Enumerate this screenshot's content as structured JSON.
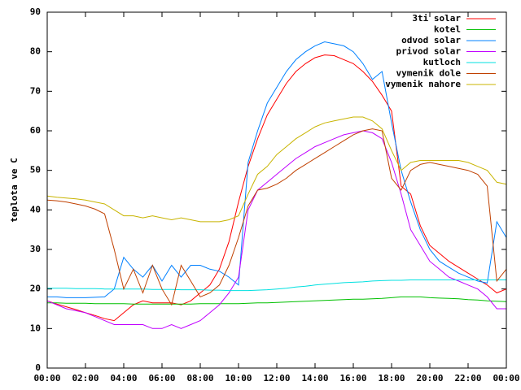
{
  "chart_data": {
    "type": "line",
    "y_label": "teplota ve C",
    "x": [
      0,
      0.5,
      1,
      1.5,
      2,
      2.5,
      3,
      3.5,
      4,
      4.5,
      5,
      5.5,
      6,
      6.5,
      7,
      7.5,
      8,
      8.5,
      9,
      9.5,
      10,
      10.5,
      11,
      11.5,
      12,
      12.5,
      13,
      13.5,
      14,
      14.5,
      15,
      15.5,
      16,
      16.5,
      17,
      17.5,
      18,
      18.5,
      19,
      19.5,
      20,
      20.5,
      21,
      21.5,
      22,
      22.5,
      23,
      23.5,
      24
    ],
    "series": [
      {
        "name": "3ti solar",
        "color": "#ff0000",
        "values": [
          17,
          16.2,
          15.5,
          14.8,
          14,
          13.3,
          12.5,
          12,
          14,
          16,
          17,
          16.5,
          16.5,
          16.5,
          16,
          17,
          19,
          21,
          25,
          32,
          42,
          51,
          58,
          64,
          68,
          72,
          75,
          77,
          78.5,
          79.2,
          79,
          78,
          77,
          75,
          72.5,
          69,
          65,
          46,
          44,
          36,
          31,
          29,
          27,
          25.5,
          24,
          22.5,
          21,
          19,
          20
        ]
      },
      {
        "name": "kotel",
        "color": "#00c000",
        "values": [
          16.5,
          16.5,
          16.4,
          16.4,
          16.4,
          16.3,
          16.3,
          16.3,
          16.3,
          16.2,
          16.2,
          16.2,
          16.2,
          16.2,
          16.2,
          16.2,
          16.3,
          16.3,
          16.3,
          16.3,
          16.3,
          16.4,
          16.5,
          16.5,
          16.6,
          16.7,
          16.8,
          16.9,
          17,
          17.1,
          17.2,
          17.3,
          17.4,
          17.4,
          17.5,
          17.6,
          17.8,
          18,
          18,
          18,
          17.8,
          17.7,
          17.6,
          17.5,
          17.3,
          17.2,
          17,
          16.9,
          16.8
        ]
      },
      {
        "name": "odvod solar",
        "color": "#0080ff",
        "values": [
          18,
          18,
          17.8,
          17.8,
          17.8,
          17.9,
          18,
          20,
          28,
          25,
          23,
          26,
          22,
          26,
          23,
          26,
          26,
          25,
          24.5,
          23,
          21,
          52,
          60,
          67,
          71,
          75,
          78,
          80,
          81.5,
          82.5,
          82,
          81.5,
          80,
          77,
          73,
          75,
          62,
          50,
          42,
          35,
          30,
          27,
          25.5,
          24,
          23,
          22,
          21.5,
          37,
          33
        ]
      },
      {
        "name": "privod solar",
        "color": "#c000ff",
        "values": [
          17,
          16,
          15,
          14.5,
          14,
          13,
          12,
          11,
          11,
          11,
          11,
          10,
          10,
          11,
          10,
          11,
          12,
          14,
          16,
          19,
          23,
          40,
          45,
          47,
          49,
          51,
          53,
          54.5,
          56,
          57,
          58,
          59,
          59.5,
          60,
          59.5,
          58,
          52,
          44,
          35,
          31,
          27,
          25,
          23,
          22,
          21,
          20,
          18,
          15,
          15
        ]
      },
      {
        "name": "kutloch",
        "color": "#00e0e0",
        "values": [
          20.2,
          20.2,
          20.2,
          20.1,
          20.1,
          20.1,
          20,
          20,
          20,
          20,
          20,
          19.9,
          19.9,
          19.9,
          19.8,
          19.8,
          19.8,
          19.7,
          19.7,
          19.6,
          19.6,
          19.6,
          19.7,
          19.8,
          20,
          20.2,
          20.5,
          20.7,
          21,
          21.2,
          21.4,
          21.6,
          21.7,
          21.8,
          22,
          22.1,
          22.2,
          22.2,
          22.3,
          22.3,
          22.3,
          22.3,
          22.3,
          22.3,
          22.3,
          22.3,
          22.3,
          22.3,
          22.3
        ]
      },
      {
        "name": "vymenik dole",
        "color": "#c04000",
        "values": [
          42.5,
          42.3,
          42,
          41.5,
          41,
          40.2,
          39,
          30,
          20,
          25,
          19,
          26,
          20,
          16,
          26,
          22,
          18,
          19,
          21,
          26,
          33,
          41,
          45,
          45.5,
          46.5,
          48,
          50,
          51.5,
          53,
          54.5,
          56,
          57.5,
          59,
          60,
          60.5,
          60,
          48,
          45,
          50,
          51.5,
          52,
          51.5,
          51,
          50.5,
          50,
          49,
          46,
          22,
          25
        ]
      },
      {
        "name": "vymenik nahore",
        "color": "#c8b400",
        "values": [
          43.5,
          43.2,
          43,
          42.8,
          42.5,
          42,
          41.5,
          40,
          38.5,
          38.5,
          38,
          38.5,
          38,
          37.5,
          38,
          37.5,
          37,
          37,
          37,
          37.5,
          38.5,
          44,
          49,
          51,
          54,
          56,
          58,
          59.5,
          61,
          62,
          62.5,
          63,
          63.5,
          63.5,
          62.5,
          60.5,
          55,
          50,
          52,
          52.5,
          52.5,
          52.5,
          52.5,
          52.5,
          52,
          51,
          50,
          47,
          46.5
        ]
      }
    ],
    "xlim": [
      0,
      24
    ],
    "xticks": [
      {
        "value": 0,
        "label": "00:00"
      },
      {
        "value": 2,
        "label": "02:00"
      },
      {
        "value": 4,
        "label": "04:00"
      },
      {
        "value": 6,
        "label": "06:00"
      },
      {
        "value": 8,
        "label": "08:00"
      },
      {
        "value": 10,
        "label": "10:00"
      },
      {
        "value": 12,
        "label": "12:00"
      },
      {
        "value": 14,
        "label": "14:00"
      },
      {
        "value": 16,
        "label": "16:00"
      },
      {
        "value": 18,
        "label": "18:00"
      },
      {
        "value": 20,
        "label": "20:00"
      },
      {
        "value": 22,
        "label": "22:00"
      },
      {
        "value": 24,
        "label": "00:00"
      }
    ],
    "ylim": [
      0,
      90
    ],
    "yticks": [
      0,
      10,
      20,
      30,
      40,
      50,
      60,
      70,
      80,
      90
    ],
    "grid": false,
    "legend": "top-right"
  }
}
